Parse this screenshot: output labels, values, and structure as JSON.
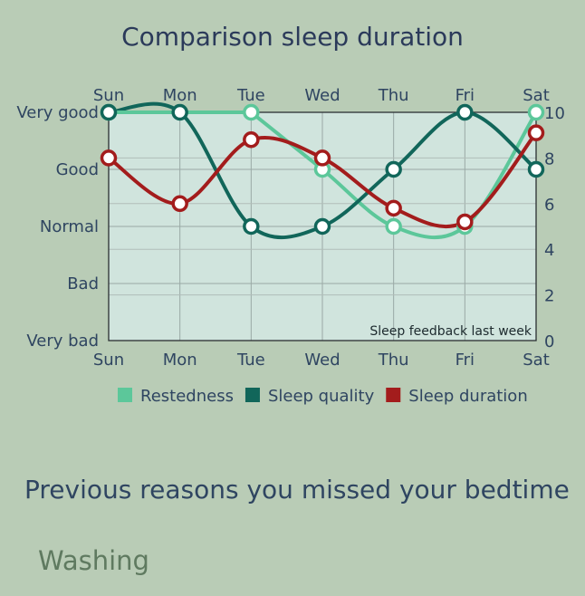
{
  "chart_data": {
    "type": "line",
    "title": "Comparison sleep duration",
    "annotation": "Sleep feedback last week",
    "categories": [
      "Sun",
      "Mon",
      "Tue",
      "Wed",
      "Thu",
      "Fri",
      "Sat"
    ],
    "left_axis": {
      "labels": [
        "Very bad",
        "Bad",
        "Normal",
        "Good",
        "Very good"
      ],
      "range": [
        0,
        4
      ]
    },
    "right_axis": {
      "ticks": [
        0,
        2,
        4,
        6,
        8,
        10
      ],
      "range": [
        0,
        10
      ]
    },
    "grid": true,
    "legend_position": "bottom",
    "series": [
      {
        "name": "Restedness",
        "axis": "left",
        "color": "#5cc79a",
        "values": [
          4,
          null,
          4,
          3,
          2,
          2,
          4
        ]
      },
      {
        "name": "Sleep quality",
        "axis": "left",
        "color": "#11665a",
        "values": [
          4,
          4,
          2,
          2,
          3,
          4,
          3
        ]
      },
      {
        "name": "Sleep duration",
        "axis": "right",
        "color": "#a31c1c",
        "values": [
          8,
          6,
          8.8,
          8,
          5.8,
          5.2,
          9.1
        ]
      }
    ]
  },
  "reasons": {
    "heading": "Previous reasons you missed your bedtime",
    "items": [
      "Washing"
    ]
  }
}
